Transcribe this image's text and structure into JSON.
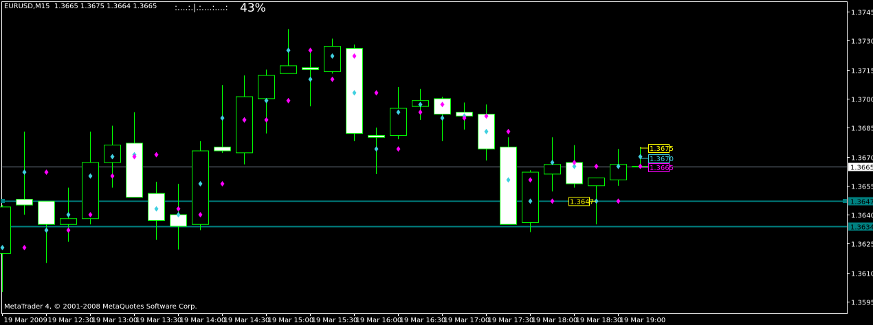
{
  "header": {
    "symbol_timeframe": "EURUSD,M15",
    "ohlc_text": "1.3665 1.3675 1.3664 1.3665",
    "meter_dots": ":....:.|.:....:....:",
    "meter_percent": "43%"
  },
  "copyright": "MetaTrader 4, © 2001-2008 MetaQuotes Software Corp.",
  "colors": {
    "background": "#000000",
    "candle_outline": "#00ff00",
    "bear_fill": "#ffffff",
    "bull_fill": "#000000",
    "cyan_marker": "#40d0e0",
    "magenta_marker": "#ff00ff",
    "bid_line": "#8090a0",
    "level_line": "#008080",
    "label_yellow": "#ffff00"
  },
  "chart_data": {
    "type": "candlestick",
    "title": "EURUSD,M15",
    "ylim": [
      1.3589,
      1.3751
    ],
    "grid": false,
    "y_ticks": [
      "1.3745",
      "1.3730",
      "1.3715",
      "1.3700",
      "1.3685",
      "1.3670",
      "1.3655",
      "1.3640",
      "1.3625",
      "1.3610",
      "1.3595"
    ],
    "x_tick_labels": [
      "19 Mar 2009",
      "19 Mar 12:30",
      "19 Mar 13:00",
      "19 Mar 13:30",
      "19 Mar 14:00",
      "19 Mar 14:30",
      "19 Mar 15:00",
      "19 Mar 15:30",
      "19 Mar 16:00",
      "19 Mar 16:30",
      "19 Mar 17:00",
      "19 Mar 17:30",
      "19 Mar 18:00",
      "19 Mar 18:30",
      "19 Mar 19:00"
    ],
    "times": [
      "12:00",
      "12:15",
      "12:30",
      "12:45",
      "13:00",
      "13:15",
      "13:30",
      "13:45",
      "14:00",
      "14:15",
      "14:30",
      "14:45",
      "15:00",
      "15:15",
      "15:30",
      "15:45",
      "16:00",
      "16:15",
      "16:30",
      "16:45",
      "17:00",
      "17:15",
      "17:30",
      "17:45",
      "18:00",
      "18:15",
      "18:30",
      "18:45",
      "19:00",
      "19:15"
    ],
    "open": [
      1.362,
      1.3648,
      1.3647,
      1.3635,
      1.3638,
      1.3667,
      1.3677,
      1.3651,
      1.364,
      1.3635,
      1.3675,
      1.3672,
      1.37,
      1.3713,
      1.3716,
      1.3714,
      1.3726,
      1.3681,
      1.3681,
      1.3696,
      1.37,
      1.3693,
      1.3692,
      1.3675,
      1.3636,
      1.3661,
      1.3667,
      1.3655,
      1.3658,
      1.3665
    ],
    "high": [
      1.3645,
      1.3683,
      1.3647,
      1.3654,
      1.3683,
      1.3686,
      1.3693,
      1.3657,
      1.3656,
      1.3678,
      1.3707,
      1.3712,
      1.3715,
      1.3736,
      1.3725,
      1.3731,
      1.3728,
      1.3685,
      1.3706,
      1.3705,
      1.3701,
      1.3698,
      1.3697,
      1.368,
      1.3663,
      1.368,
      1.3676,
      1.3659,
      1.3674,
      1.3675
    ],
    "low": [
      1.36,
      1.364,
      1.3615,
      1.3626,
      1.3635,
      1.3654,
      1.3649,
      1.3627,
      1.3622,
      1.3632,
      1.3672,
      1.3666,
      1.3682,
      1.3713,
      1.3696,
      1.3713,
      1.3678,
      1.3661,
      1.3679,
      1.3689,
      1.3678,
      1.3684,
      1.3668,
      1.3635,
      1.3631,
      1.3652,
      1.3654,
      1.3635,
      1.3655,
      1.3664
    ],
    "close": [
      1.3644,
      1.3645,
      1.3635,
      1.3638,
      1.3667,
      1.3676,
      1.3649,
      1.3637,
      1.3634,
      1.3673,
      1.3673,
      1.3701,
      1.3712,
      1.3717,
      1.3715,
      1.3727,
      1.3682,
      1.368,
      1.3695,
      1.3699,
      1.3692,
      1.3691,
      1.3674,
      1.3635,
      1.3662,
      1.3666,
      1.3656,
      1.3659,
      1.3666,
      1.3665
    ],
    "series": [
      {
        "color": "#40d0e0",
        "values": [
          1.3623,
          1.3662,
          1.3632,
          1.364,
          1.366,
          1.367,
          1.3671,
          1.3643,
          1.364,
          1.3656,
          1.369,
          1.3689,
          1.3699,
          1.3725,
          1.371,
          1.3722,
          1.3703,
          1.3674,
          1.3693,
          1.3697,
          1.369,
          1.3691,
          1.3683,
          1.3658,
          1.3647,
          1.3667,
          1.3665,
          1.3647,
          1.3665,
          1.367
        ]
      },
      {
        "color": "#ff00ff",
        "values": [
          null,
          1.3623,
          1.3662,
          1.3632,
          1.364,
          1.366,
          1.367,
          1.3671,
          1.3643,
          1.364,
          1.3656,
          1.3689,
          1.3689,
          1.3699,
          1.3725,
          1.371,
          1.3722,
          1.3703,
          1.3674,
          1.3693,
          1.3697,
          1.369,
          1.3691,
          1.3683,
          1.3658,
          1.3647,
          1.3667,
          1.3665,
          1.3647,
          1.3665
        ]
      }
    ],
    "horizontal_lines": [
      {
        "price": 1.3665,
        "label": "1.3665",
        "color": "#8090a0",
        "label_bg": "#ffffff",
        "label_fg": "#000000"
      },
      {
        "price": 1.3647,
        "label": "1.3647",
        "color": "#008080",
        "label_bg": "#008080",
        "label_fg": "#000000"
      },
      {
        "price": 1.3634,
        "label": "1.3634",
        "color": "#008080",
        "label_bg": "#008080",
        "label_fg": "#000000"
      }
    ],
    "annotations": [
      {
        "text": "1.3647",
        "price": 1.3647,
        "time": "18:30",
        "color": "#ffff00"
      },
      {
        "text": "1.3675",
        "price": 1.3675,
        "time": "19:15",
        "color": "#ffff00"
      },
      {
        "text": "1.3670",
        "price": 1.367,
        "time": "19:15",
        "color": "#40d0e0"
      },
      {
        "text": "1.3665",
        "price": 1.3665,
        "time": "19:15",
        "color": "#ff00ff"
      }
    ]
  }
}
